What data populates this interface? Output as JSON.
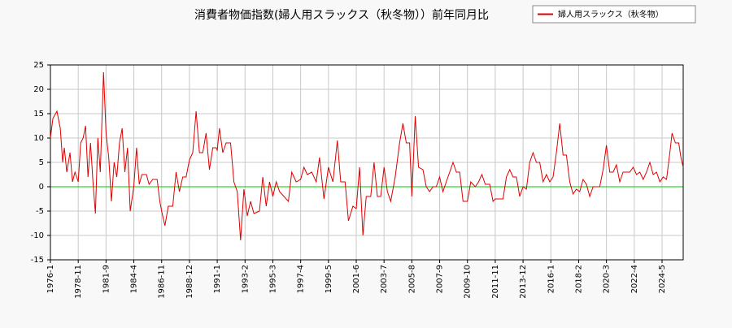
{
  "chart_data": {
    "type": "line",
    "title": "消費者物価指数(婦人用スラックス（秋冬物））前年同月比",
    "x": [
      "1976-1",
      "1976-4",
      "1976-9",
      "1977-1",
      "1977-4",
      "1977-6",
      "1977-9",
      "1978-1",
      "1978-4",
      "1978-7",
      "1978-11",
      "1979-2",
      "1979-5",
      "1979-8",
      "1979-11",
      "1980-2",
      "1980-5",
      "1980-8",
      "1980-11",
      "1981-2",
      "1981-6",
      "1981-9",
      "1981-12",
      "1982-3",
      "1982-6",
      "1982-9",
      "1982-12",
      "1983-3",
      "1983-6",
      "1983-9",
      "1983-12",
      "1984-4",
      "1984-7",
      "1984-10",
      "1985-1",
      "1985-6",
      "1985-9",
      "1986-1",
      "1986-6",
      "1986-9",
      "1986-11",
      "1987-2",
      "1987-5",
      "1987-9",
      "1987-12",
      "1988-3",
      "1988-6",
      "1988-9",
      "1988-12",
      "1989-3",
      "1989-6",
      "1989-9",
      "1989-12",
      "1990-3",
      "1990-6",
      "1990-9",
      "1990-12",
      "1991-1",
      "1991-3",
      "1991-6",
      "1991-9",
      "1992-1",
      "1992-4",
      "1992-7",
      "1992-10",
      "1993-1",
      "1993-4",
      "1993-7",
      "1993-10",
      "1994-3",
      "1994-6",
      "1994-9",
      "1994-12",
      "1995-3",
      "1995-6",
      "1995-9",
      "1996-1",
      "1996-5",
      "1996-8",
      "1996-12",
      "1997-4",
      "1997-7",
      "1997-10",
      "1998-2",
      "1998-6",
      "1998-9",
      "1999-1",
      "1999-5",
      "1999-9",
      "2000-1",
      "2000-4",
      "2000-8",
      "2000-11",
      "2001-3",
      "2001-6",
      "2001-9",
      "2001-12",
      "2002-3",
      "2002-7",
      "2002-10",
      "2003-1",
      "2003-4",
      "2003-7",
      "2003-10",
      "2004-1",
      "2004-5",
      "2004-9",
      "2004-12",
      "2005-3",
      "2005-6",
      "2005-8",
      "2005-11",
      "2006-2",
      "2006-6",
      "2006-9",
      "2006-12",
      "2007-3",
      "2007-6",
      "2007-9",
      "2007-12",
      "2008-3",
      "2008-6",
      "2008-9",
      "2008-12",
      "2009-3",
      "2009-6",
      "2009-10",
      "2010-1",
      "2010-5",
      "2010-8",
      "2010-11",
      "2011-2",
      "2011-6",
      "2011-9",
      "2011-11",
      "2012-3",
      "2012-6",
      "2012-9",
      "2012-12",
      "2013-3",
      "2013-6",
      "2013-9",
      "2013-12",
      "2014-3",
      "2014-6",
      "2014-9",
      "2014-12",
      "2015-3",
      "2015-6",
      "2015-9",
      "2015-12",
      "2016-3",
      "2016-6",
      "2016-9",
      "2016-12",
      "2017-3",
      "2017-6",
      "2017-9",
      "2017-12",
      "2018-3",
      "2018-6",
      "2018-9",
      "2018-12",
      "2019-3",
      "2019-6",
      "2019-9",
      "2019-12",
      "2020-3",
      "2020-6",
      "2020-9",
      "2020-12",
      "2021-3",
      "2021-6",
      "2021-9",
      "2021-12",
      "2022-3",
      "2022-6",
      "2022-9",
      "2022-12",
      "2023-3",
      "2023-6",
      "2023-9",
      "2023-12",
      "2024-3",
      "2024-6",
      "2024-9",
      "2024-12",
      "2025-2",
      "2025-5",
      "2025-8",
      "2025-10",
      "2025-12"
    ],
    "series": [
      {
        "name": "婦人用スラックス（秋冬物）",
        "color": "#dd0000",
        "values": [
          10,
          14,
          15.5,
          12,
          5,
          8,
          3,
          7,
          1,
          3,
          1,
          9,
          10,
          12.5,
          2,
          9,
          1,
          -5.5,
          10,
          3,
          23.5,
          11,
          6,
          -3,
          5,
          2,
          9,
          12,
          3,
          8,
          -5,
          0,
          8,
          0.5,
          2.5,
          2.5,
          0.5,
          1.5,
          1.5,
          -3,
          -5,
          -8,
          -4,
          -4,
          3,
          -1,
          2,
          2,
          5.5,
          7,
          15.5,
          7,
          7,
          11,
          3.5,
          8,
          8,
          7.5,
          12,
          7,
          9,
          9,
          1,
          -1,
          -11,
          -0.5,
          -6,
          -3,
          -5.5,
          -5,
          2,
          -4,
          1,
          -2,
          1,
          -1,
          -2,
          -3,
          3,
          1,
          1.5,
          4,
          2.5,
          3,
          1,
          6,
          -2.5,
          4,
          1,
          9.5,
          1,
          1,
          -7,
          -4,
          -4.5,
          4,
          -10,
          -2,
          -2,
          5,
          -2,
          -2,
          4,
          -1,
          -3,
          2,
          9,
          13,
          9,
          9,
          -2,
          14.5,
          4,
          3.5,
          0,
          -1,
          0,
          0,
          2,
          -1,
          1,
          3,
          5,
          3,
          3,
          -3,
          -3,
          1,
          0,
          1,
          2.5,
          0.5,
          0.5,
          -3,
          -2.5,
          -2.5,
          -2.5,
          2,
          3.5,
          2,
          2,
          -2,
          0,
          -0.5,
          5,
          7,
          5,
          5,
          1,
          2.5,
          1,
          2,
          7,
          13,
          6.5,
          6.5,
          1,
          -1.5,
          -0.5,
          -1,
          1.5,
          0.5,
          -2,
          0,
          0,
          0,
          3.5,
          8.5,
          3,
          3,
          4.5,
          1,
          3,
          3,
          3,
          4,
          2.5,
          3,
          1.5,
          3,
          5,
          2.5,
          3,
          1,
          2,
          1.5,
          7,
          11,
          9,
          9,
          6,
          4
        ]
      }
    ],
    "xticks": [
      "1976-1",
      "1978-11",
      "1981-9",
      "1984-4",
      "1986-11",
      "1988-12",
      "1991-1",
      "1993-2",
      "1995-3",
      "1997-4",
      "1999-5",
      "2001-6",
      "2003-7",
      "2005-8",
      "2007-9",
      "2009-10",
      "2011-11",
      "2013-12",
      "2016-1",
      "2018-2",
      "2020-3",
      "2022-4",
      "2024-5"
    ],
    "ylim": [
      -15,
      25
    ],
    "yticks": [
      -15,
      -10,
      -5,
      0,
      5,
      10,
      15,
      20,
      25
    ],
    "grid": true,
    "zero_line_color": "#00cc00",
    "legend": "upper right"
  }
}
